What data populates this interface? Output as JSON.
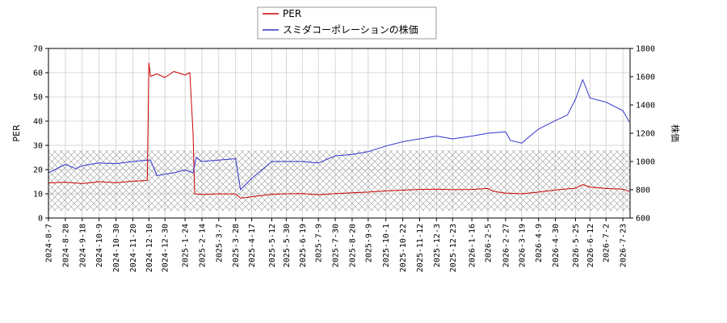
{
  "chart_data": {
    "type": "line",
    "legend": {
      "placement": "top-center",
      "entries": [
        {
          "name": "PER",
          "color": "#cc0000"
        },
        {
          "name": "スミダコーポレーションの株価",
          "color": "#3333cc"
        }
      ]
    },
    "ylabel_left": "PER",
    "ylabel_right": "株価",
    "ylim_left": [
      0,
      70
    ],
    "ylim_right": [
      600,
      1800
    ],
    "yticks_left": [
      "0",
      "10",
      "20",
      "30",
      "40",
      "50",
      "60",
      "70"
    ],
    "yticks_right": [
      "600",
      "800",
      "1000",
      "1200",
      "1400",
      "1600",
      "1800"
    ],
    "x_tick_labels": [
      "2024-8-7",
      "2024-8-28",
      "2024-9-18",
      "2024-10-9",
      "2024-10-30",
      "2024-11-20",
      "2024-12-10",
      "2024-12-30",
      "2025-1-24",
      "2025-2-14",
      "2025-3-7",
      "2025-3-28",
      "2025-4-17",
      "2025-5-12",
      "2025-5-30",
      "2025-6-19",
      "2025-7-9",
      "2025-7-30",
      "2025-8-20",
      "2025-9-9",
      "2025-10-1",
      "2025-10-22",
      "2025-11-12",
      "2025-12-3",
      "2025-12-23",
      "2026-1-16",
      "2026-2-5",
      "2026-2-27",
      "2026-3-19",
      "2026-4-9",
      "2026-4-30",
      "2026-5-25",
      "2026-6-12",
      "2026-7-2",
      "2026-7-23"
    ],
    "grid": true,
    "hatched_band_left": [
      3,
      28
    ],
    "series": [
      {
        "name": "PER",
        "axis": "left",
        "color": "#cc0000",
        "x": [
          "2024-8-7",
          "2024-8-28",
          "2024-9-18",
          "2024-10-9",
          "2024-10-30",
          "2024-11-20",
          "2024-12-8",
          "2024-12-10",
          "2024-12-12",
          "2024-12-20",
          "2024-12-30",
          "2025-1-10",
          "2025-1-24",
          "2025-1-30",
          "2025-2-3",
          "2025-2-5",
          "2025-2-14",
          "2025-3-7",
          "2025-3-28",
          "2025-4-3",
          "2025-4-17",
          "2025-5-12",
          "2025-5-30",
          "2025-6-19",
          "2025-7-9",
          "2025-7-30",
          "2025-8-20",
          "2025-9-9",
          "2025-10-1",
          "2025-10-22",
          "2025-11-12",
          "2025-12-3",
          "2025-12-23",
          "2026-1-16",
          "2026-2-5",
          "2026-2-12",
          "2026-2-27",
          "2026-3-19",
          "2026-4-9",
          "2026-4-30",
          "2026-5-25",
          "2026-6-3",
          "2026-6-12",
          "2026-7-2",
          "2026-7-23",
          "2026-7-31"
        ],
        "values": [
          14.5,
          14.8,
          14.2,
          15.0,
          14.6,
          15.2,
          15.5,
          64.0,
          58.5,
          59.5,
          58.0,
          60.5,
          59.0,
          60.0,
          35.0,
          10.0,
          9.7,
          10.0,
          9.9,
          8.2,
          8.8,
          9.8,
          10.0,
          10.1,
          9.6,
          10.1,
          10.4,
          10.7,
          11.2,
          11.5,
          11.8,
          11.9,
          11.7,
          11.8,
          12.2,
          11.0,
          10.3,
          10.0,
          10.7,
          11.6,
          12.3,
          13.8,
          12.8,
          12.2,
          11.9,
          11.0
        ]
      },
      {
        "name": "スミダコーポレーションの株価",
        "axis": "right",
        "color": "#3333cc",
        "x": [
          "2024-8-7",
          "2024-8-28",
          "2024-9-10",
          "2024-9-18",
          "2024-10-9",
          "2024-10-30",
          "2024-11-20",
          "2024-12-8",
          "2024-12-12",
          "2024-12-20",
          "2024-12-30",
          "2025-1-10",
          "2025-1-24",
          "2025-2-3",
          "2025-2-7",
          "2025-2-14",
          "2025-3-7",
          "2025-3-28",
          "2025-4-3",
          "2025-4-17",
          "2025-5-12",
          "2025-5-30",
          "2025-6-19",
          "2025-7-9",
          "2025-7-30",
          "2025-8-20",
          "2025-9-9",
          "2025-10-1",
          "2025-10-22",
          "2025-11-12",
          "2025-12-3",
          "2025-12-23",
          "2026-1-16",
          "2026-2-5",
          "2026-2-27",
          "2026-3-5",
          "2026-3-19",
          "2026-4-9",
          "2026-4-30",
          "2026-5-15",
          "2026-5-25",
          "2026-6-3",
          "2026-6-12",
          "2026-7-2",
          "2026-7-23",
          "2026-7-31"
        ],
        "values": [
          920,
          980,
          950,
          970,
          990,
          985,
          1000,
          1010,
          1010,
          900,
          910,
          920,
          940,
          920,
          1030,
          1000,
          1010,
          1020,
          800,
          880,
          1000,
          1000,
          1000,
          990,
          1040,
          1050,
          1070,
          1110,
          1140,
          1160,
          1180,
          1160,
          1180,
          1200,
          1210,
          1150,
          1130,
          1230,
          1290,
          1330,
          1440,
          1580,
          1450,
          1420,
          1360,
          1280
        ]
      }
    ]
  }
}
